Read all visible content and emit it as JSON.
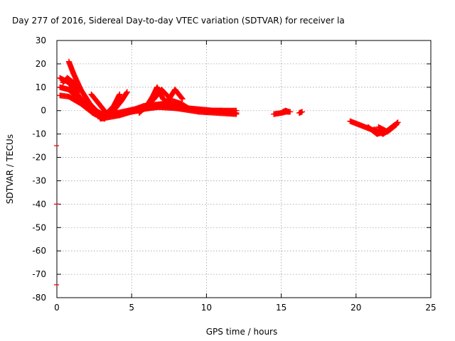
{
  "chart_data": {
    "type": "scatter",
    "title": "Day 277 of 2016, Sidereal Day-to-day VTEC variation (SDTVAR) for receiver la",
    "xlabel": "GPS time / hours",
    "ylabel": "SDTVAR / TECUs",
    "xlim": [
      0,
      25
    ],
    "ylim": [
      -80,
      30
    ],
    "x_ticks": [
      "0",
      "5",
      "10",
      "15",
      "20",
      "25"
    ],
    "y_ticks": [
      "30",
      "20",
      "10",
      "0",
      "-10",
      "-20",
      "-30",
      "-40",
      "-50",
      "-60",
      "-70",
      "-80"
    ],
    "grid": true,
    "marker": "plus",
    "series_color": "#ff0000",
    "arcs": [
      {
        "x": [
          0.2,
          0.8,
          1.5,
          2.3,
          2.9,
          3.2
        ],
        "y": [
          14,
          12,
          6,
          0,
          -3,
          -3.5
        ]
      },
      {
        "x": [
          0.2,
          0.8,
          1.6,
          2.4,
          3.0
        ],
        "y": [
          10,
          9,
          4,
          -1,
          -3
        ]
      },
      {
        "x": [
          0.2,
          0.8,
          1.6,
          2.4,
          3.0
        ],
        "y": [
          6.5,
          6,
          3,
          -1,
          -3
        ]
      },
      {
        "x": [
          0.8,
          1.1,
          1.6,
          2.2,
          2.8,
          3.2
        ],
        "y": [
          21,
          16,
          9,
          3,
          -1,
          -3
        ]
      },
      {
        "x": [
          0.4,
          0.7,
          1.1,
          1.5
        ],
        "y": [
          12,
          14,
          12,
          8
        ]
      },
      {
        "x": [
          2.3,
          2.8,
          3.3,
          3.9,
          4.5
        ],
        "y": [
          7,
          3,
          -1,
          -2,
          -1
        ]
      },
      {
        "x": [
          2.6,
          3.2,
          3.8,
          4.2
        ],
        "y": [
          0,
          -2,
          2,
          7
        ]
      },
      {
        "x": [
          3.4,
          3.8,
          4.3,
          4.7
        ],
        "y": [
          -2,
          0,
          4,
          8
        ]
      },
      {
        "x": [
          2.9,
          4.0,
          5.5,
          7.0,
          8.5,
          10.0,
          12.0
        ],
        "y": [
          -3,
          -1,
          1,
          2,
          1,
          0,
          -1
        ]
      },
      {
        "x": [
          2.9,
          4.2,
          5.5,
          6.8,
          8.0,
          9.5,
          12.0
        ],
        "y": [
          -3.5,
          -2,
          0.5,
          1.5,
          1,
          -0.5,
          -1.5
        ]
      },
      {
        "x": [
          3.5,
          4.5,
          5.8,
          7.2,
          8.8,
          10.5,
          12.0
        ],
        "y": [
          -2,
          -1,
          2,
          3,
          1,
          0,
          0
        ]
      },
      {
        "x": [
          4.5,
          5.5,
          6.5,
          7.5,
          8.2
        ],
        "y": [
          -1,
          0,
          2,
          3,
          1
        ]
      },
      {
        "x": [
          5.5,
          6.0,
          6.5,
          7.0,
          7.6
        ],
        "y": [
          -1,
          2,
          5,
          9,
          5
        ]
      },
      {
        "x": [
          6.0,
          6.4,
          6.7,
          7.1,
          7.7
        ],
        "y": [
          2,
          6,
          10,
          5,
          2
        ]
      },
      {
        "x": [
          6.8,
          7.3,
          7.8,
          8.3,
          8.8
        ],
        "y": [
          2,
          3,
          4,
          3,
          1
        ]
      },
      {
        "x": [
          7.0,
          7.5,
          7.9,
          8.4
        ],
        "y": [
          2,
          5,
          9,
          5
        ]
      },
      {
        "x": [
          9.5,
          10.0,
          10.5,
          11.0,
          11.5,
          12.0
        ],
        "y": [
          0.5,
          -0.5,
          0,
          0,
          -0.5,
          -1
        ]
      },
      {
        "x": [
          14.5,
          15.0,
          15.3,
          15.6
        ],
        "y": [
          -1.5,
          -1.0,
          -0.5,
          -0.5
        ]
      },
      {
        "x": [
          15.1,
          15.3,
          15.5
        ],
        "y": [
          -0.5,
          0,
          -0.5
        ]
      },
      {
        "x": [
          16.2,
          16.4
        ],
        "y": [
          -1,
          -0.5
        ]
      },
      {
        "x": [
          19.6,
          20.2,
          20.8,
          21.4
        ],
        "y": [
          -4.5,
          -6,
          -7.5,
          -9
        ]
      },
      {
        "x": [
          20.8,
          21.4,
          22.0,
          22.6
        ],
        "y": [
          -7,
          -10,
          -9,
          -6
        ]
      },
      {
        "x": [
          21.2,
          21.8,
          22.3,
          22.8
        ],
        "y": [
          -8,
          -10,
          -8,
          -5
        ]
      },
      {
        "x": [
          21.5,
          22.1,
          22.7
        ],
        "y": [
          -7,
          -9,
          -6
        ]
      }
    ],
    "outliers": [
      {
        "x": 0,
        "y": -15
      },
      {
        "x": 0,
        "y": -40
      },
      {
        "x": 0,
        "y": -74.5
      }
    ]
  }
}
